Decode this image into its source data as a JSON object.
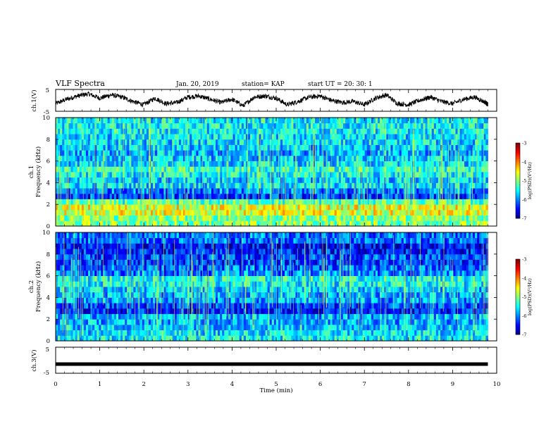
{
  "header": {
    "title": "VLF Spectra",
    "date": "Jan. 20, 2019",
    "station": "station= KAP",
    "start": "start  UT =   20: 30: 1"
  },
  "colors": {
    "colormap": [
      "#00007f",
      "#0000ff",
      "#007fff",
      "#00ffff",
      "#7fff7f",
      "#ffff00",
      "#ff7f00",
      "#ff0000",
      "#7f0000"
    ],
    "trace": "#000000",
    "frame": "#000000"
  },
  "chart_data": [
    {
      "type": "line",
      "name": "ch1-waveform",
      "ylabel": "ch.1(V)",
      "ylim": [
        -5,
        5
      ],
      "yticks": [
        "-5",
        "5"
      ],
      "xlim": [
        0,
        10
      ],
      "x": [
        0.0,
        0.25,
        0.5,
        0.75,
        1.0,
        1.25,
        1.5,
        1.75,
        2.0,
        2.25,
        2.5,
        2.75,
        3.0,
        3.25,
        3.5,
        3.75,
        4.0,
        4.25,
        4.5,
        4.75,
        5.0,
        5.25,
        5.5,
        5.75,
        6.0,
        6.25,
        6.5,
        6.75,
        7.0,
        7.25,
        7.5,
        7.75,
        8.0,
        8.25,
        8.5,
        8.75,
        9.0,
        9.25,
        9.5,
        9.75,
        9.8
      ],
      "y": [
        -1.5,
        0.5,
        2.0,
        3.0,
        1.0,
        2.5,
        1.5,
        -0.5,
        -2.0,
        1.0,
        -1.5,
        -1.0,
        1.5,
        2.0,
        0.5,
        -1.0,
        0.5,
        -2.5,
        1.5,
        2.0,
        1.0,
        -2.0,
        -0.5,
        1.5,
        2.0,
        0.0,
        -1.0,
        -0.5,
        -2.0,
        1.0,
        2.5,
        -1.5,
        -2.0,
        0.0,
        1.5,
        -0.5,
        -1.5,
        0.5,
        1.5,
        -1.0,
        -2.0
      ]
    },
    {
      "type": "heatmap",
      "name": "ch1-spectrogram",
      "ylabel": "ch.1",
      "ylabel2": "Frequency  (kHz)",
      "xlim": [
        0,
        9.8
      ],
      "ylim": [
        0,
        10
      ],
      "yticks": [
        "0",
        "2",
        "4",
        "6",
        "8",
        "10"
      ],
      "colorbar": {
        "label": "log(PSD)(V²/Hz)",
        "range": [
          -7,
          -3
        ],
        "ticks": [
          "-3",
          "-4",
          "-5",
          "-6",
          "-7"
        ]
      },
      "freq_khz": [
        0.25,
        0.75,
        1.25,
        1.75,
        2.25,
        2.75,
        3.25,
        3.75,
        4.25,
        4.75,
        5.25,
        5.75,
        6.25,
        6.75,
        7.25,
        7.75,
        8.25,
        8.75,
        9.25,
        9.75
      ],
      "log_psd": [
        -5.0,
        -5.0,
        -4.6,
        -4.6,
        -5.2,
        -6.3,
        -6.0,
        -5.6,
        -5.7,
        -5.5,
        -5.3,
        -5.6,
        -5.7,
        -5.8,
        -5.7,
        -5.6,
        -5.6,
        -5.5,
        -5.5,
        -5.5
      ]
    },
    {
      "type": "heatmap",
      "name": "ch2-spectrogram",
      "ylabel": "ch.2",
      "ylabel2": "Frequency  (kHz)",
      "xlim": [
        0,
        9.8
      ],
      "ylim": [
        0,
        10
      ],
      "yticks": [
        "0",
        "2",
        "4",
        "6",
        "8",
        "10"
      ],
      "colorbar": {
        "label": "log(PSD)(V²/Hz)",
        "range": [
          -7,
          -3
        ],
        "ticks": [
          "-3",
          "-4",
          "-5",
          "-6",
          "-7"
        ]
      },
      "freq_khz": [
        0.25,
        0.75,
        1.25,
        1.75,
        2.25,
        2.75,
        3.25,
        3.75,
        4.25,
        4.75,
        5.25,
        5.75,
        6.25,
        6.75,
        7.25,
        7.75,
        8.25,
        8.75,
        9.25,
        9.75
      ],
      "log_psd": [
        -5.5,
        -5.6,
        -5.7,
        -5.8,
        -5.8,
        -6.4,
        -6.3,
        -5.9,
        -5.8,
        -5.7,
        -5.5,
        -5.4,
        -6.0,
        -6.1,
        -6.3,
        -6.2,
        -6.4,
        -6.5,
        -6.1,
        -6.0
      ]
    },
    {
      "type": "line",
      "name": "ch3-waveform",
      "ylabel": "ch.3(V)",
      "ylim": [
        -5,
        5
      ],
      "yticks": [
        "-5",
        "5"
      ],
      "xlim": [
        0,
        10
      ],
      "x": [
        0.0,
        9.8
      ],
      "y": [
        -1.5,
        -1.5
      ]
    }
  ],
  "x_axis": {
    "label": "Time  (min)",
    "ticks": [
      "0",
      "1",
      "2",
      "3",
      "4",
      "5",
      "6",
      "7",
      "8",
      "9",
      "10"
    ],
    "range": [
      0,
      10
    ]
  }
}
